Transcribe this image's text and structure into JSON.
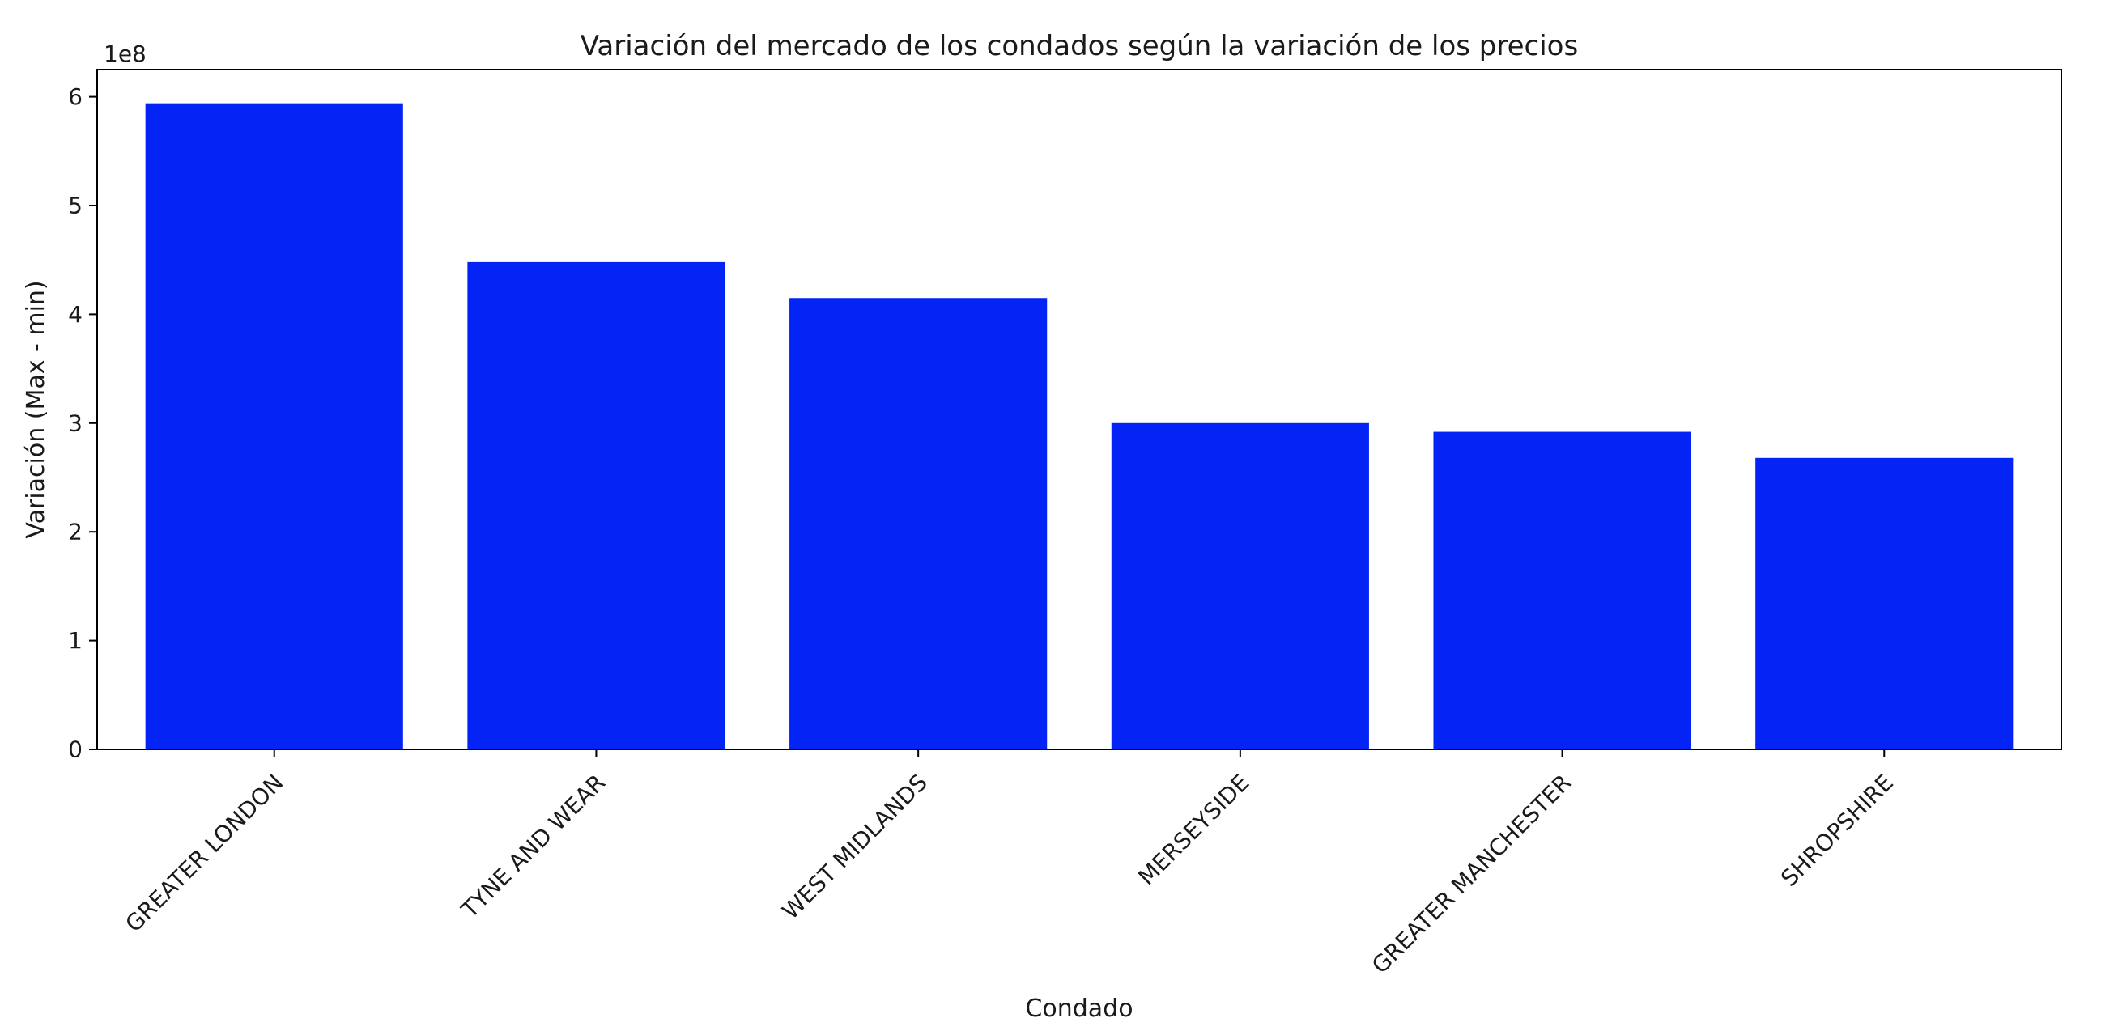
{
  "chart_data": {
    "type": "bar",
    "title": "Variación del mercado de los condados según la variación de los precios",
    "xlabel": "Condado",
    "ylabel": "Variación (Max - min)",
    "y_scale_label": "1e8",
    "y_multiplier": 100000000,
    "categories": [
      "GREATER LONDON",
      "TYNE AND WEAR",
      "WEST MIDLANDS",
      "MERSEYSIDE",
      "GREATER MANCHESTER",
      "SHROPSHIRE"
    ],
    "values": [
      594000000,
      448000000,
      415000000,
      300000000,
      292000000,
      268000000
    ],
    "ylim": [
      0,
      625000000
    ],
    "yticks": [
      0,
      1,
      2,
      3,
      4,
      5,
      6
    ],
    "bar_color": "#0324f5",
    "grid": false,
    "legend": "none"
  }
}
